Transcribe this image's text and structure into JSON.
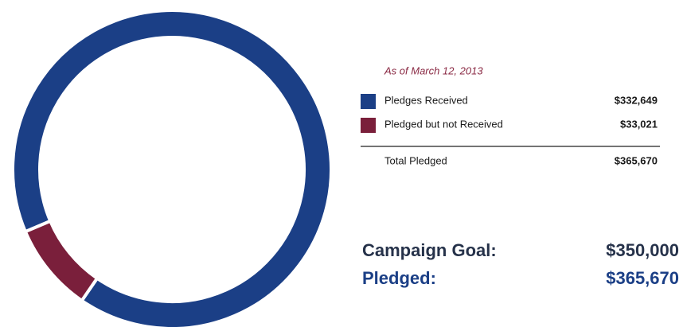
{
  "chart_data": {
    "type": "donut",
    "subtitle": "As of March 12, 2013",
    "categories": [
      "Pledges Received",
      "Pledged but not Received"
    ],
    "values": [
      332649,
      33021
    ],
    "value_labels": [
      "$332,649",
      "$33,021"
    ],
    "colors": [
      "#1b3f86",
      "#7a1f3b"
    ],
    "total": {
      "label": "Total Pledged",
      "value_label": "$365,670"
    }
  },
  "summary": [
    {
      "label": "Campaign Goal:",
      "value": "$350,000"
    },
    {
      "label": "Pledged:",
      "value": "$365,670"
    }
  ]
}
